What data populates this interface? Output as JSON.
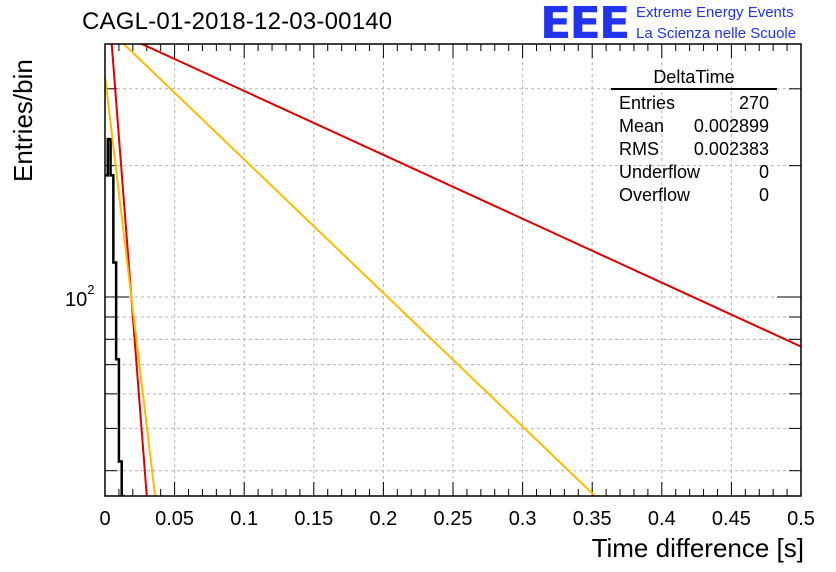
{
  "title": "CAGL-01-2018-12-03-00140",
  "logo": {
    "mark": "EEE",
    "line1": "Extreme Energy Events",
    "line2": "La Scienza nelle Scuole",
    "color": "#2233ee"
  },
  "stats_box": {
    "title": "DeltaTime",
    "rows": [
      {
        "label": "Entries",
        "value": "270"
      },
      {
        "label": "Mean",
        "value": "0.002899"
      },
      {
        "label": "RMS",
        "value": "0.002383"
      },
      {
        "label": "Underflow",
        "value": "0"
      },
      {
        "label": "Overflow",
        "value": "0"
      }
    ]
  },
  "chart_data": {
    "type": "line",
    "title": "CAGL-01-2018-12-03-00140",
    "xlabel": "Time difference [s]",
    "ylabel": "Entries/bin",
    "xlim": [
      0,
      0.5
    ],
    "ylim": [
      35,
      380
    ],
    "y_scale": "log",
    "x_ticks": [
      "0",
      "0.05",
      "0.1",
      "0.15",
      "0.2",
      "0.25",
      "0.3",
      "0.35",
      "0.4",
      "0.45",
      "0.5"
    ],
    "y_ticks": [
      {
        "value": 100,
        "label": "10",
        "exponent": "2"
      }
    ],
    "grid": true,
    "series": [
      {
        "color": "#000000",
        "kind": "histogram",
        "x": [
          0.0,
          0.002,
          0.004,
          0.006,
          0.008,
          0.01,
          0.012
        ],
        "y": [
          190,
          230,
          190,
          120,
          72,
          42,
          35
        ]
      },
      {
        "color": "#dd0000",
        "kind": "line",
        "x": [
          0.0,
          0.03
        ],
        "y": [
          600,
          35
        ]
      },
      {
        "color": "#ffbb00",
        "kind": "line",
        "x": [
          0.0,
          0.036
        ],
        "y": [
          320,
          35
        ]
      },
      {
        "color": "#dd0000",
        "kind": "line",
        "x": [
          0.015,
          0.5
        ],
        "y": [
          395,
          77
        ]
      },
      {
        "color": "#ffbb00",
        "kind": "line",
        "x": [
          0.008,
          0.352
        ],
        "y": [
          395,
          35
        ]
      }
    ]
  }
}
